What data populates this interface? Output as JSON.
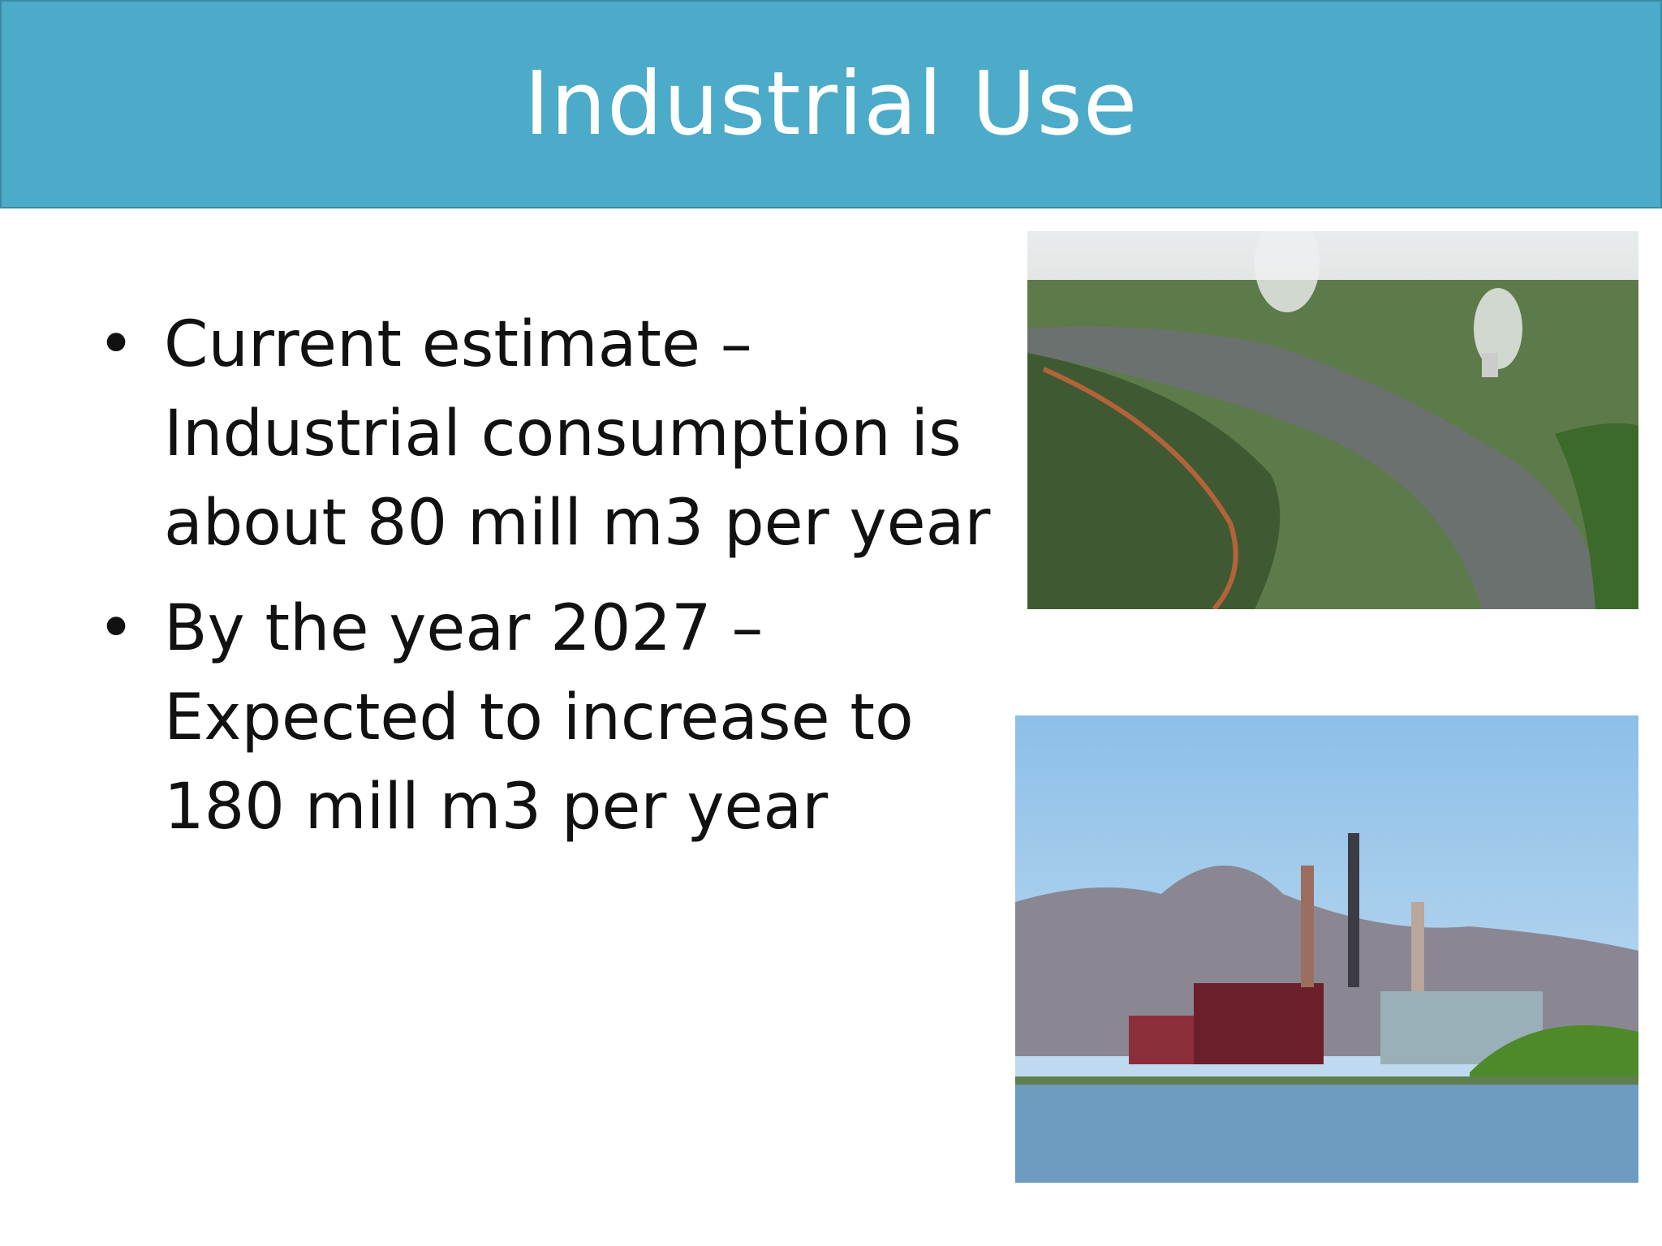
{
  "header": {
    "title": "Industrial Use"
  },
  "bullets": [
    "Current estimate – Industrial consumption is about 80 mill m3 per year",
    "By the year 2027 – Expected to increase to 180 mill m3 per year"
  ]
}
